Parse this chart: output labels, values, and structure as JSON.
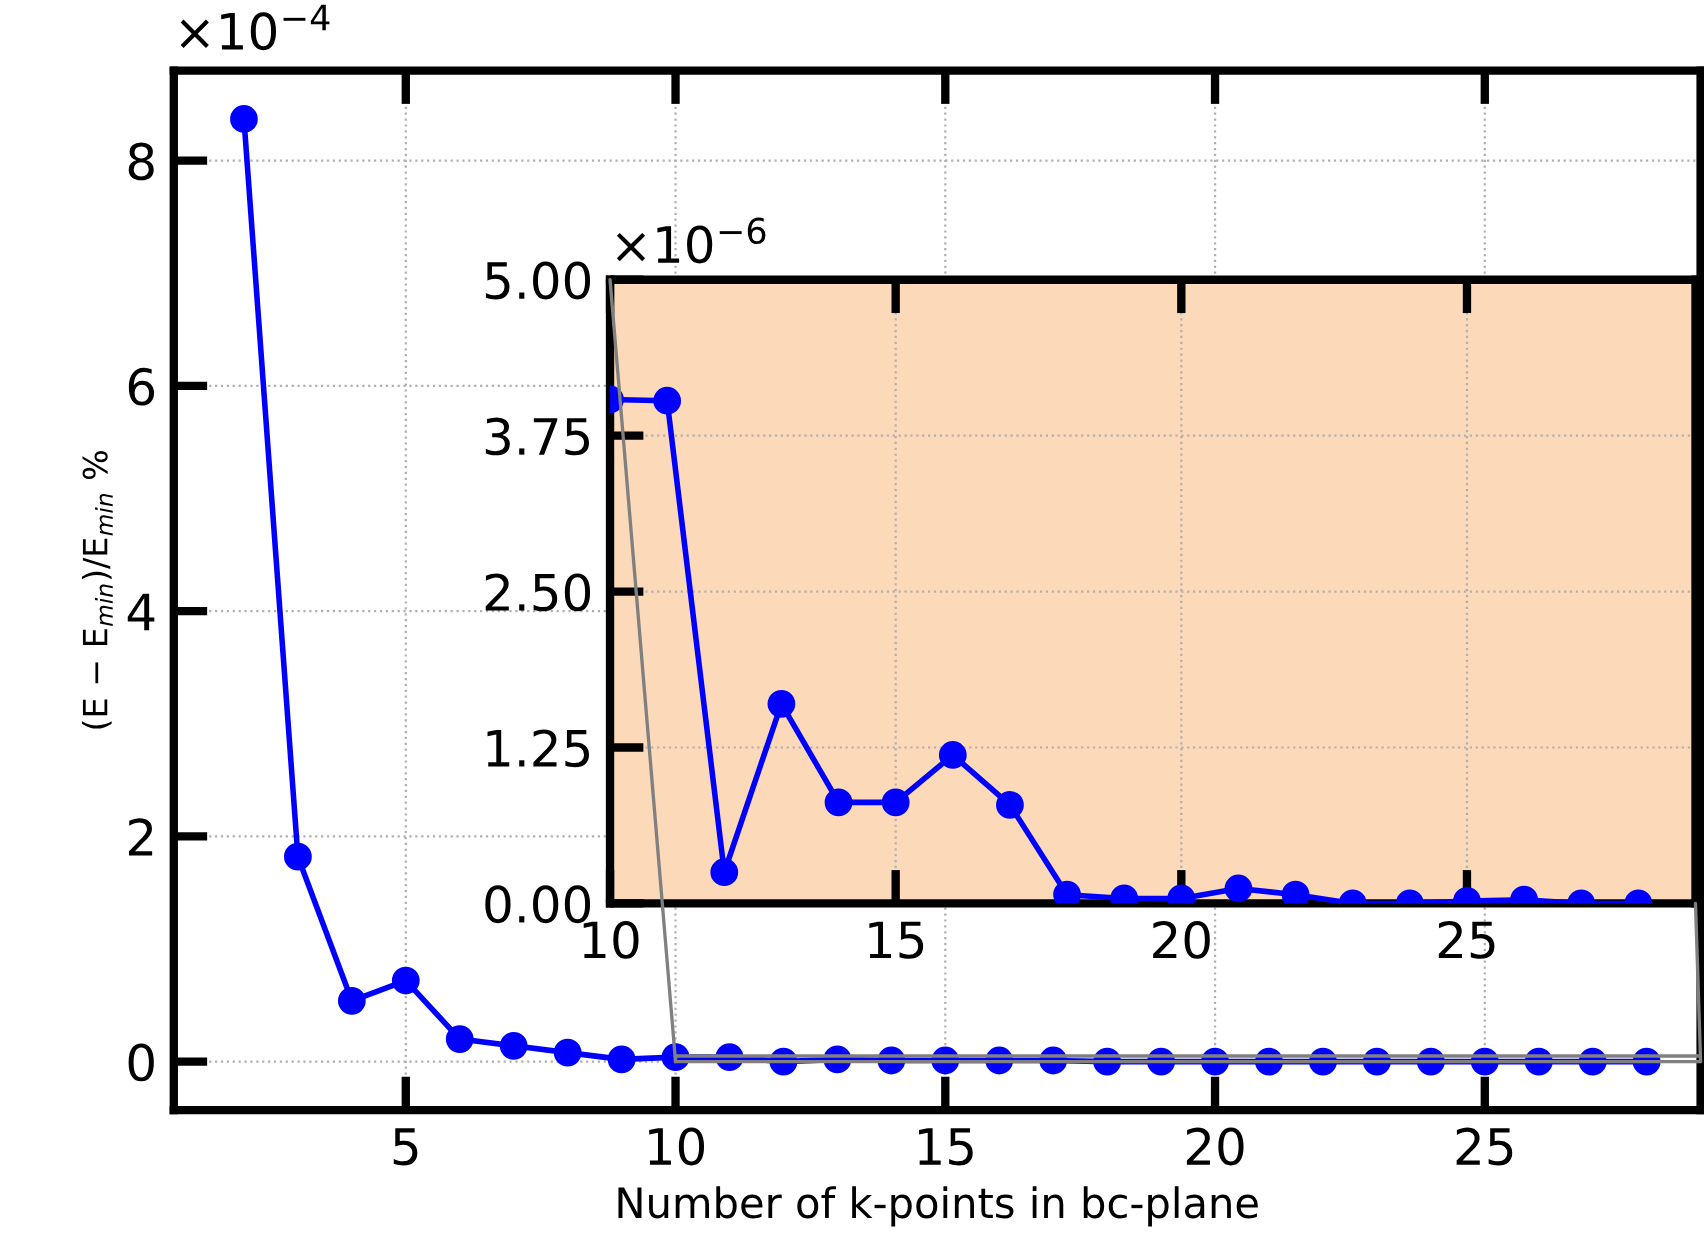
{
  "chart_data": [
    {
      "type": "line",
      "xlabel": "Number of k-points in bc-plane",
      "ylabel": "(E − E$_{min}$)/E$_{min}$ %",
      "annotations": [
        "×10$^{−4}$"
      ],
      "x": [
        2,
        3,
        4,
        5,
        6,
        7,
        8,
        9,
        10,
        11,
        12,
        13,
        14,
        15,
        16,
        17,
        18,
        19,
        20,
        21,
        22,
        23,
        24,
        25,
        26,
        27,
        28
      ],
      "series": [
        {
          "color": "#0000ff",
          "values": [
            8.37,
            1.82,
            0.54,
            0.72,
            0.2,
            0.14,
            0.08,
            0.02,
            0.04,
            0.04,
            0.0,
            0.02,
            0.01,
            0.01,
            0.01,
            0.01,
            0.0,
            0.0,
            0.0,
            0.0,
            0.0,
            0.0,
            0.0,
            0.0,
            0.0,
            0.0,
            0.0
          ]
        }
      ],
      "marker": "circle",
      "line_style": "solid",
      "grid": true,
      "xlim": [
        0.7,
        29
      ],
      "ylim": [
        -0.43,
        8.8
      ],
      "xticks": [
        5,
        10,
        15,
        20,
        25
      ],
      "yticks": [
        0,
        2,
        4,
        6,
        8
      ]
    },
    {
      "type": "line",
      "annotations": [
        "×10$^{−6}$"
      ],
      "x": [
        10,
        11,
        12,
        13,
        14,
        15,
        16,
        17,
        18,
        19,
        20,
        21,
        22,
        23,
        24,
        25,
        26,
        27,
        28
      ],
      "series": [
        {
          "color": "#0000ff",
          "values": [
            4.04,
            4.03,
            0.25,
            1.6,
            0.81,
            0.81,
            1.19,
            0.79,
            0.07,
            0.04,
            0.04,
            0.12,
            0.07,
            0.0,
            0.0,
            0.02,
            0.03,
            0.0,
            0.0
          ]
        }
      ],
      "marker": "circle",
      "line_style": "solid",
      "grid": true,
      "xlim": [
        10,
        29
      ],
      "ylim": [
        0,
        5
      ],
      "xticks": [
        10,
        15,
        20,
        25
      ],
      "yticks": [
        {
          "value": 0,
          "label": "0.00"
        },
        {
          "value": 1.25,
          "label": "1.25"
        },
        {
          "value": 2.5,
          "label": "2.50"
        },
        {
          "value": 3.75,
          "label": "3.75"
        },
        {
          "value": 5,
          "label": "5.00"
        }
      ]
    }
  ]
}
